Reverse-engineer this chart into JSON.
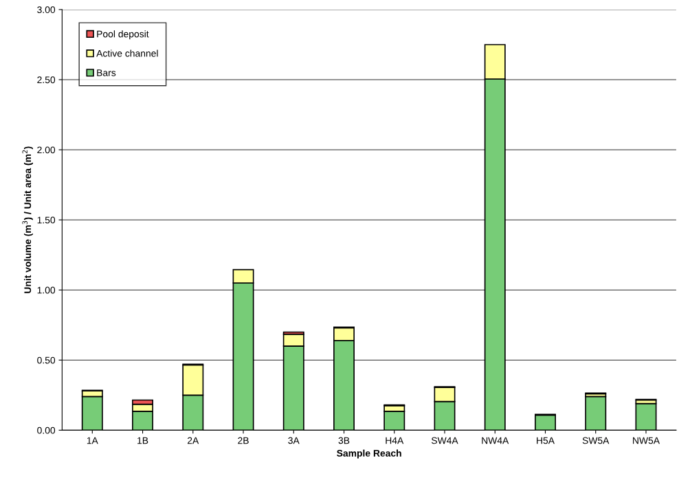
{
  "chart_data": {
    "type": "bar",
    "stacked": true,
    "xlabel": "Sample Reach",
    "ylabel": "Unit volume (m$^{3}$) / Unit area (m$^{2}$)",
    "categories": [
      "1A",
      "1B",
      "2A",
      "2B",
      "3A",
      "3B",
      "H4A",
      "SW4A",
      "NW4A",
      "H5A",
      "SW5A",
      "NW5A"
    ],
    "series": [
      {
        "name": "Bars",
        "color": "#77cc77",
        "values": [
          0.24,
          0.135,
          0.25,
          1.05,
          0.6,
          0.64,
          0.135,
          0.205,
          2.505,
          0.108,
          0.24,
          0.19
        ]
      },
      {
        "name": "Active channel",
        "color": "#ffff99",
        "values": [
          0.04,
          0.05,
          0.215,
          0.095,
          0.085,
          0.09,
          0.04,
          0.1,
          0.245,
          null,
          0.02,
          0.025
        ]
      },
      {
        "name": "Pool deposit",
        "color": "#ee5555",
        "values": [
          0.005,
          0.03,
          0.005,
          null,
          0.015,
          0.005,
          0.005,
          0.005,
          null,
          0.005,
          0.005,
          0.005
        ]
      }
    ],
    "ylim": [
      0,
      3
    ],
    "yticks": [
      {
        "value": 0,
        "label": "0.00"
      },
      {
        "value": 0.5,
        "label": "0.50"
      },
      {
        "value": 1,
        "label": "1.00"
      },
      {
        "value": 1.5,
        "label": "1.50"
      },
      {
        "value": 2,
        "label": "2.00"
      },
      {
        "value": 2.5,
        "label": "2.50"
      },
      {
        "value": 3,
        "label": "3.00"
      }
    ],
    "grid": "y",
    "legend": "top left"
  }
}
